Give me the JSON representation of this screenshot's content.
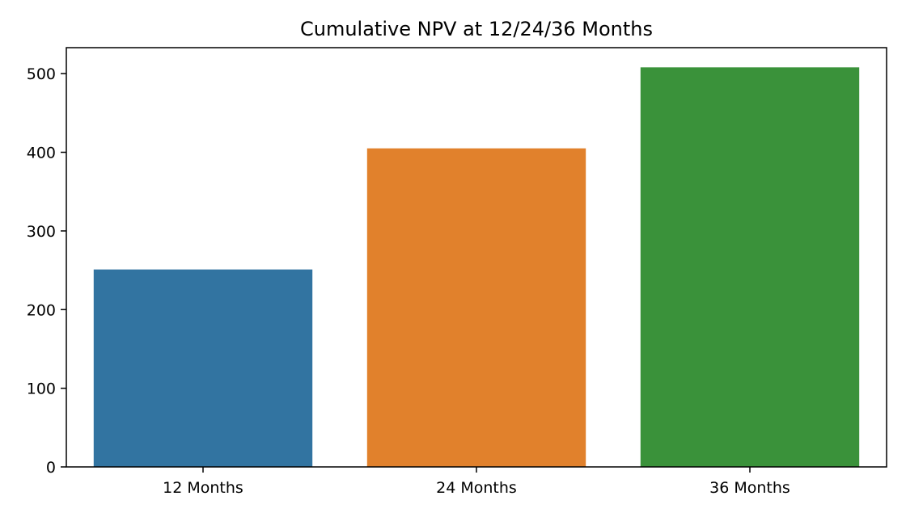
{
  "chart_data": {
    "type": "bar",
    "title": "Cumulative NPV at 12/24/36 Months",
    "xlabel": "",
    "ylabel": "",
    "categories": [
      "12 Months",
      "24 Months",
      "36 Months"
    ],
    "values": [
      251,
      405,
      508
    ],
    "colors": [
      "#3274a1",
      "#e1812c",
      "#3a923a"
    ],
    "ylim": [
      0,
      533
    ],
    "yticks": [
      0,
      100,
      200,
      300,
      400,
      500
    ],
    "grid": false,
    "legend": "none"
  }
}
